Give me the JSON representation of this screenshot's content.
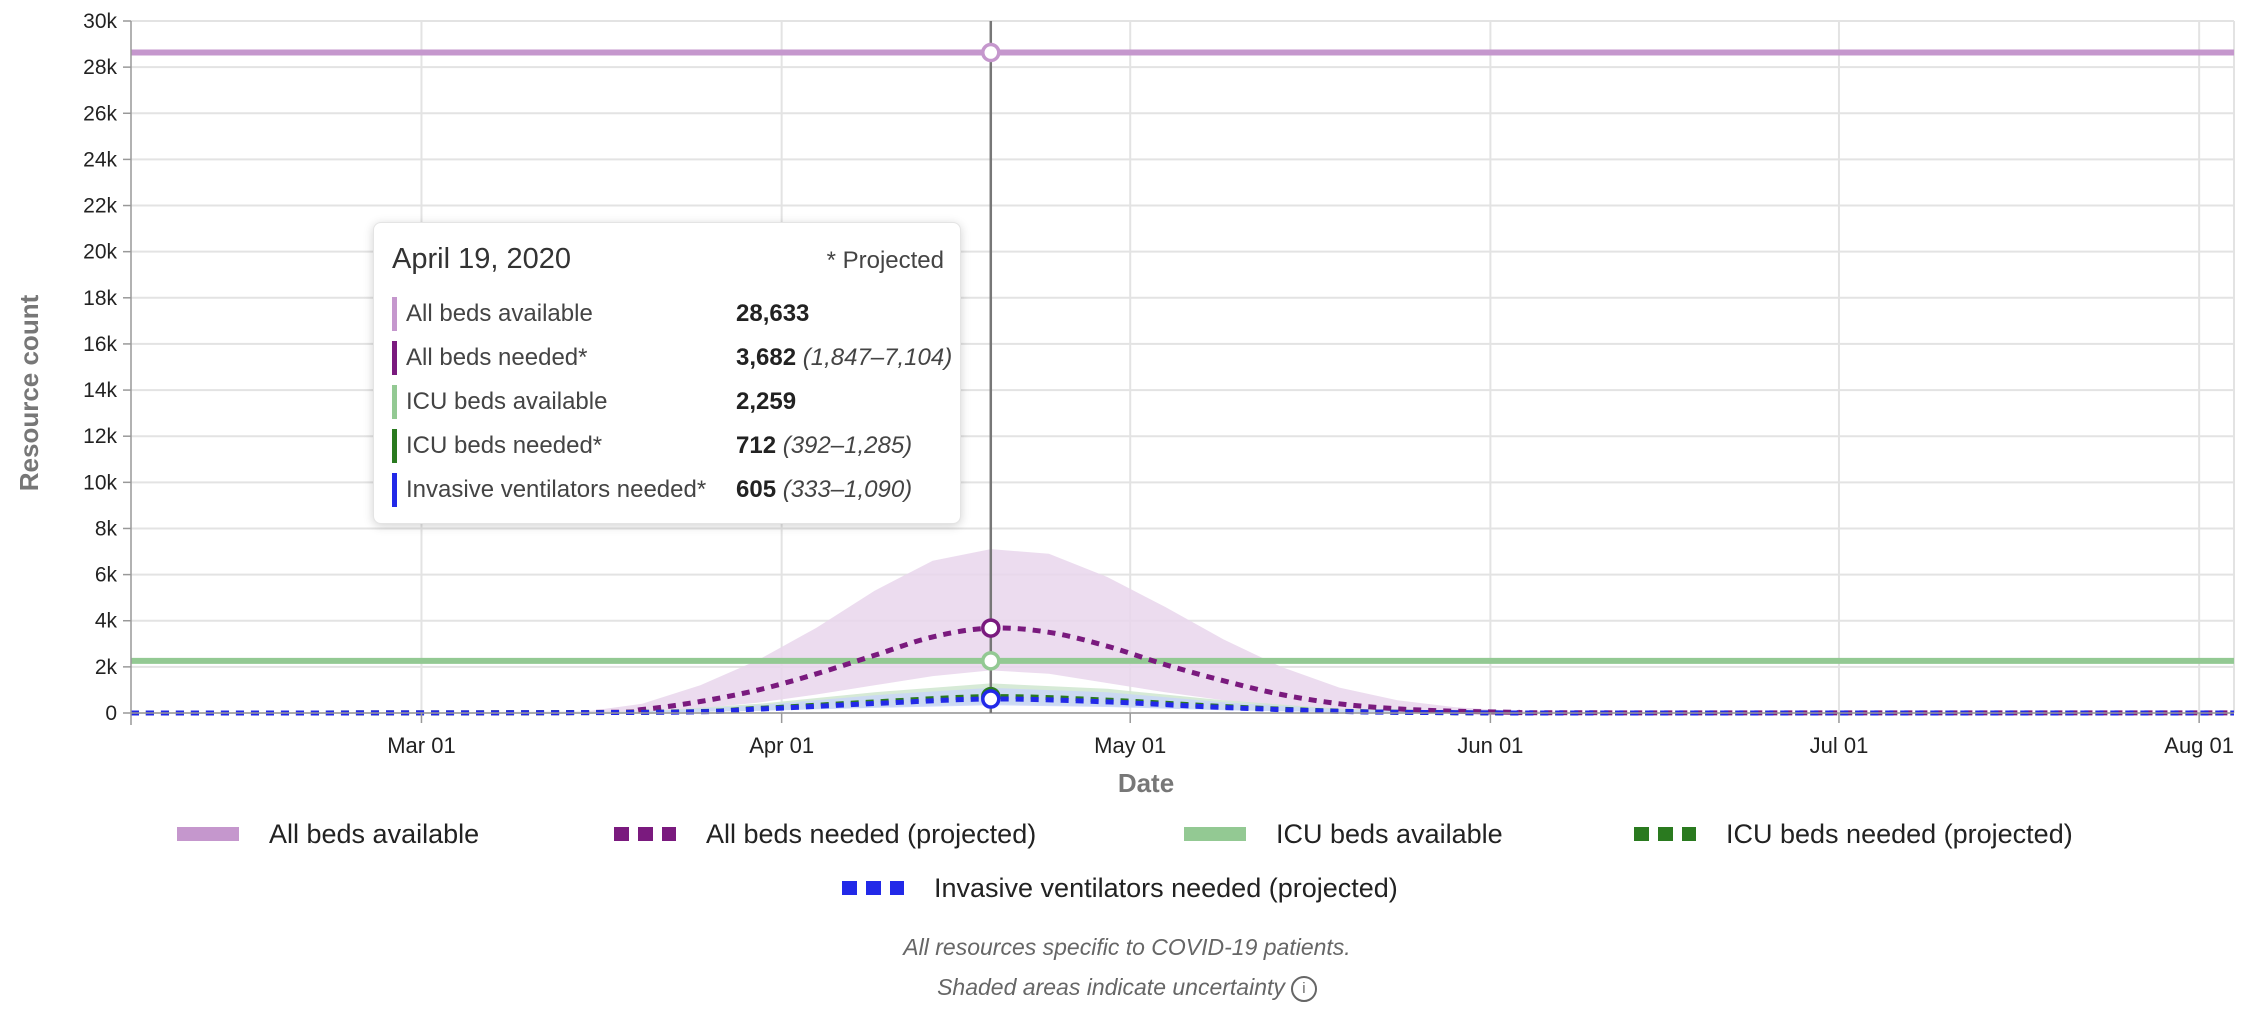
{
  "chart_data": {
    "type": "line",
    "xlabel": "Date",
    "ylabel": "Resource count",
    "x_range": [
      "2020-02-05",
      "2020-08-04"
    ],
    "x_ticks": [
      {
        "date": "2020-03-01",
        "label": "Mar 01"
      },
      {
        "date": "2020-04-01",
        "label": "Apr 01"
      },
      {
        "date": "2020-05-01",
        "label": "May 01"
      },
      {
        "date": "2020-06-01",
        "label": "Jun 01"
      },
      {
        "date": "2020-07-01",
        "label": "Jul 01"
      },
      {
        "date": "2020-08-01",
        "label": "Aug 01"
      }
    ],
    "ylim": [
      0,
      30000
    ],
    "y_ticks": [
      {
        "value": 0,
        "label": "0"
      },
      {
        "value": 2000,
        "label": "2k"
      },
      {
        "value": 4000,
        "label": "4k"
      },
      {
        "value": 6000,
        "label": "6k"
      },
      {
        "value": 8000,
        "label": "8k"
      },
      {
        "value": 10000,
        "label": "10k"
      },
      {
        "value": 12000,
        "label": "12k"
      },
      {
        "value": 14000,
        "label": "14k"
      },
      {
        "value": 16000,
        "label": "16k"
      },
      {
        "value": 18000,
        "label": "18k"
      },
      {
        "value": 20000,
        "label": "20k"
      },
      {
        "value": 22000,
        "label": "22k"
      },
      {
        "value": 24000,
        "label": "24k"
      },
      {
        "value": 26000,
        "label": "26k"
      },
      {
        "value": 28000,
        "label": "28k"
      },
      {
        "value": 30000,
        "label": "30k"
      }
    ],
    "grid": true,
    "legend_position": "bottom",
    "hover_date": "2020-04-19",
    "series": [
      {
        "key": "all_beds_available",
        "name": "All beds available",
        "color": "#c597cd",
        "style": "solid",
        "points": [
          [
            "2020-02-05",
            28633
          ],
          [
            "2020-08-04",
            28633
          ]
        ]
      },
      {
        "key": "all_beds_needed",
        "name": "All beds needed (projected)",
        "color": "#7a1a7e",
        "style": "dotted",
        "band_color": "#e9d6ec",
        "points": [
          [
            "2020-02-05",
            0
          ],
          [
            "2020-03-15",
            20
          ],
          [
            "2020-03-20",
            150
          ],
          [
            "2020-03-25",
            500
          ],
          [
            "2020-03-30",
            1000
          ],
          [
            "2020-04-04",
            1700
          ],
          [
            "2020-04-09",
            2500
          ],
          [
            "2020-04-14",
            3300
          ],
          [
            "2020-04-19",
            3682
          ],
          [
            "2020-04-24",
            3500
          ],
          [
            "2020-04-29",
            2900
          ],
          [
            "2020-05-04",
            2100
          ],
          [
            "2020-05-09",
            1400
          ],
          [
            "2020-05-14",
            800
          ],
          [
            "2020-05-19",
            400
          ],
          [
            "2020-05-24",
            180
          ],
          [
            "2020-05-29",
            80
          ],
          [
            "2020-06-03",
            30
          ],
          [
            "2020-06-10",
            10
          ],
          [
            "2020-08-04",
            5
          ]
        ],
        "band": [
          [
            "2020-02-05",
            0,
            0
          ],
          [
            "2020-03-15",
            5,
            60
          ],
          [
            "2020-03-20",
            60,
            400
          ],
          [
            "2020-03-25",
            200,
            1200
          ],
          [
            "2020-03-30",
            450,
            2300
          ],
          [
            "2020-04-04",
            800,
            3700
          ],
          [
            "2020-04-09",
            1200,
            5300
          ],
          [
            "2020-04-14",
            1600,
            6600
          ],
          [
            "2020-04-19",
            1847,
            7104
          ],
          [
            "2020-04-24",
            1700,
            6900
          ],
          [
            "2020-04-29",
            1300,
            5900
          ],
          [
            "2020-05-04",
            900,
            4600
          ],
          [
            "2020-05-09",
            550,
            3200
          ],
          [
            "2020-05-14",
            300,
            2000
          ],
          [
            "2020-05-19",
            140,
            1100
          ],
          [
            "2020-05-24",
            60,
            550
          ],
          [
            "2020-05-29",
            20,
            250
          ],
          [
            "2020-06-03",
            5,
            100
          ],
          [
            "2020-06-10",
            0,
            30
          ],
          [
            "2020-08-04",
            0,
            10
          ]
        ]
      },
      {
        "key": "icu_beds_available",
        "name": "ICU beds available",
        "color": "#93c993",
        "style": "solid",
        "points": [
          [
            "2020-02-05",
            2259
          ],
          [
            "2020-08-04",
            2259
          ]
        ]
      },
      {
        "key": "icu_beds_needed",
        "name": "ICU beds needed (projected)",
        "color": "#2a7a1f",
        "style": "dotted",
        "band_color": "#cfe6cf",
        "points": [
          [
            "2020-02-05",
            0
          ],
          [
            "2020-03-20",
            30
          ],
          [
            "2020-03-30",
            200
          ],
          [
            "2020-04-09",
            480
          ],
          [
            "2020-04-19",
            712
          ],
          [
            "2020-04-29",
            560
          ],
          [
            "2020-05-09",
            280
          ],
          [
            "2020-05-19",
            80
          ],
          [
            "2020-05-29",
            15
          ],
          [
            "2020-06-10",
            2
          ],
          [
            "2020-08-04",
            0
          ]
        ],
        "band": [
          [
            "2020-02-05",
            0,
            0
          ],
          [
            "2020-03-20",
            10,
            60
          ],
          [
            "2020-03-30",
            100,
            400
          ],
          [
            "2020-04-09",
            260,
            900
          ],
          [
            "2020-04-19",
            392,
            1285
          ],
          [
            "2020-04-29",
            300,
            1050
          ],
          [
            "2020-05-09",
            140,
            550
          ],
          [
            "2020-05-19",
            30,
            180
          ],
          [
            "2020-05-29",
            5,
            40
          ],
          [
            "2020-06-10",
            0,
            5
          ],
          [
            "2020-08-04",
            0,
            0
          ]
        ]
      },
      {
        "key": "ventilators_needed",
        "name": "Invasive ventilators needed (projected)",
        "color": "#2229e8",
        "style": "dotted",
        "band_color": "#c9d6f7",
        "points": [
          [
            "2020-02-05",
            0
          ],
          [
            "2020-03-20",
            25
          ],
          [
            "2020-03-30",
            170
          ],
          [
            "2020-04-09",
            410
          ],
          [
            "2020-04-19",
            605
          ],
          [
            "2020-04-29",
            480
          ],
          [
            "2020-05-09",
            240
          ],
          [
            "2020-05-19",
            70
          ],
          [
            "2020-05-29",
            12
          ],
          [
            "2020-06-10",
            2
          ],
          [
            "2020-08-04",
            0
          ]
        ],
        "band": [
          [
            "2020-02-05",
            0,
            0
          ],
          [
            "2020-03-20",
            8,
            50
          ],
          [
            "2020-03-30",
            90,
            340
          ],
          [
            "2020-04-09",
            220,
            770
          ],
          [
            "2020-04-19",
            333,
            1090
          ],
          [
            "2020-04-29",
            260,
            900
          ],
          [
            "2020-05-09",
            120,
            470
          ],
          [
            "2020-05-19",
            25,
            150
          ],
          [
            "2020-05-29",
            4,
            35
          ],
          [
            "2020-06-10",
            0,
            4
          ],
          [
            "2020-08-04",
            0,
            0
          ]
        ]
      }
    ]
  },
  "tooltip": {
    "date": "April 19, 2020",
    "projected_note": "* Projected",
    "rows": [
      {
        "label": "All beds available",
        "value": "28,633",
        "range": "",
        "color": "#c597cd"
      },
      {
        "label": "All beds needed*",
        "value": "3,682",
        "range": "(1,847–7,104)",
        "color": "#7a1a7e"
      },
      {
        "label": "ICU beds available",
        "value": "2,259",
        "range": "",
        "color": "#93c993"
      },
      {
        "label": "ICU beds needed*",
        "value": "712",
        "range": "(392–1,285)",
        "color": "#2a7a1f"
      },
      {
        "label": "Invasive ventilators needed*",
        "value": "605",
        "range": "(333–1,090)",
        "color": "#2229e8"
      }
    ]
  },
  "legend": {
    "items": [
      {
        "label": "All beds available",
        "color": "#c597cd",
        "style": "solid"
      },
      {
        "label": "All beds needed (projected)",
        "color": "#7a1a7e",
        "style": "dotted"
      },
      {
        "label": "ICU beds available",
        "color": "#93c993",
        "style": "solid"
      },
      {
        "label": "ICU beds needed (projected)",
        "color": "#2a7a1f",
        "style": "dotted"
      },
      {
        "label": "Invasive ventilators needed (projected)",
        "color": "#2229e8",
        "style": "dotted"
      }
    ]
  },
  "notes": {
    "line1": "All resources specific to COVID-19 patients.",
    "line2": "Shaded areas indicate uncertainty",
    "info_icon": "info-icon"
  }
}
